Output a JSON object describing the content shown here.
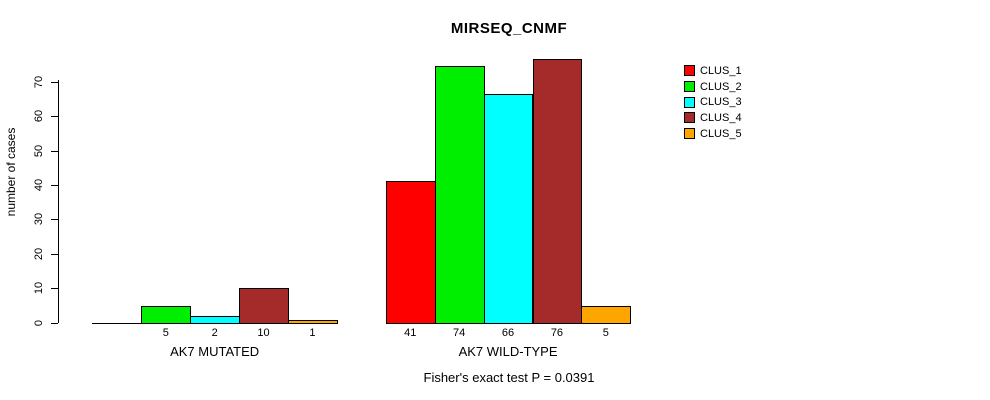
{
  "title": "MIRSEQ_CNMF",
  "footer": "Fisher's exact test P = 0.0391",
  "y_axis": {
    "label": "number of cases",
    "ticks": [
      0,
      10,
      20,
      30,
      40,
      50,
      60,
      70
    ]
  },
  "legend": {
    "items": [
      {
        "label": "CLUS_1",
        "color": "#FF0000"
      },
      {
        "label": "CLUS_2",
        "color": "#00EE00"
      },
      {
        "label": "CLUS_3",
        "color": "#00FFFF"
      },
      {
        "label": "CLUS_4",
        "color": "#A52A2A"
      },
      {
        "label": "CLUS_5",
        "color": "#FFA500"
      }
    ]
  },
  "chart_data": {
    "type": "bar",
    "title": "MIRSEQ_CNMF",
    "ylabel": "number of cases",
    "xlabel": "",
    "ylim": [
      0,
      76
    ],
    "y_ticks": [
      0,
      10,
      20,
      30,
      40,
      50,
      60,
      70
    ],
    "grid": false,
    "legend_position": "top-right",
    "categories": [
      "AK7 MUTATED",
      "AK7 WILD-TYPE"
    ],
    "series": [
      {
        "name": "CLUS_1",
        "color": "#FF0000",
        "values": [
          0,
          41
        ]
      },
      {
        "name": "CLUS_2",
        "color": "#00EE00",
        "values": [
          5,
          74
        ]
      },
      {
        "name": "CLUS_3",
        "color": "#00FFFF",
        "values": [
          2,
          66
        ]
      },
      {
        "name": "CLUS_4",
        "color": "#A52A2A",
        "values": [
          10,
          76
        ]
      },
      {
        "name": "CLUS_5",
        "color": "#FFA500",
        "values": [
          1,
          5
        ]
      }
    ],
    "bar_value_labels_shown": true,
    "annotation": "Fisher's exact test P = 0.0391"
  }
}
